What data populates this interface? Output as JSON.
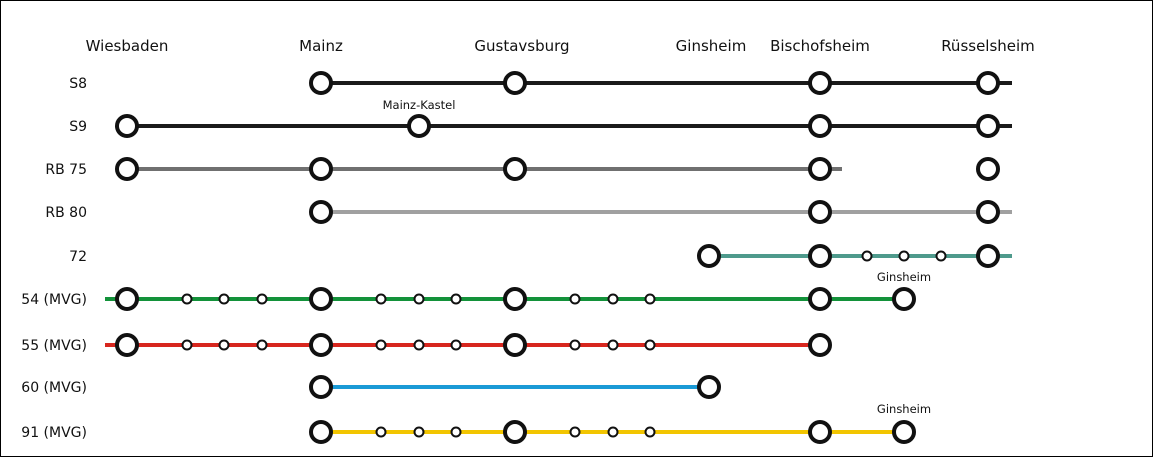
{
  "stations": [
    {
      "id": "wiesbaden",
      "name": "Wiesbaden"
    },
    {
      "id": "mainz",
      "name": "Mainz"
    },
    {
      "id": "gustavsburg",
      "name": "Gustavsburg"
    },
    {
      "id": "ginsheim",
      "name": "Ginsheim"
    },
    {
      "id": "bischofsheim",
      "name": "Bischofsheim"
    },
    {
      "id": "ruesselsheim",
      "name": "Rüsselsheim"
    }
  ],
  "lines": [
    {
      "name": "S8",
      "color": "#1a1a1a"
    },
    {
      "name": "S9",
      "color": "#1a1a1a",
      "annotation": "Mainz-Kastel"
    },
    {
      "name": "RB 75",
      "color": "#707070"
    },
    {
      "name": "RB 80",
      "color": "#a0a0a0"
    },
    {
      "name": "72",
      "color": "#4e9a8c"
    },
    {
      "name": "54 (MVG)",
      "color": "#13923a",
      "annotation": "Ginsheim"
    },
    {
      "name": "55 (MVG)",
      "color": "#d7261e"
    },
    {
      "name": "60 (MVG)",
      "color": "#1a9ad6"
    },
    {
      "name": "91 (MVG)",
      "color": "#f2c500",
      "annotation": "Ginsheim"
    }
  ]
}
